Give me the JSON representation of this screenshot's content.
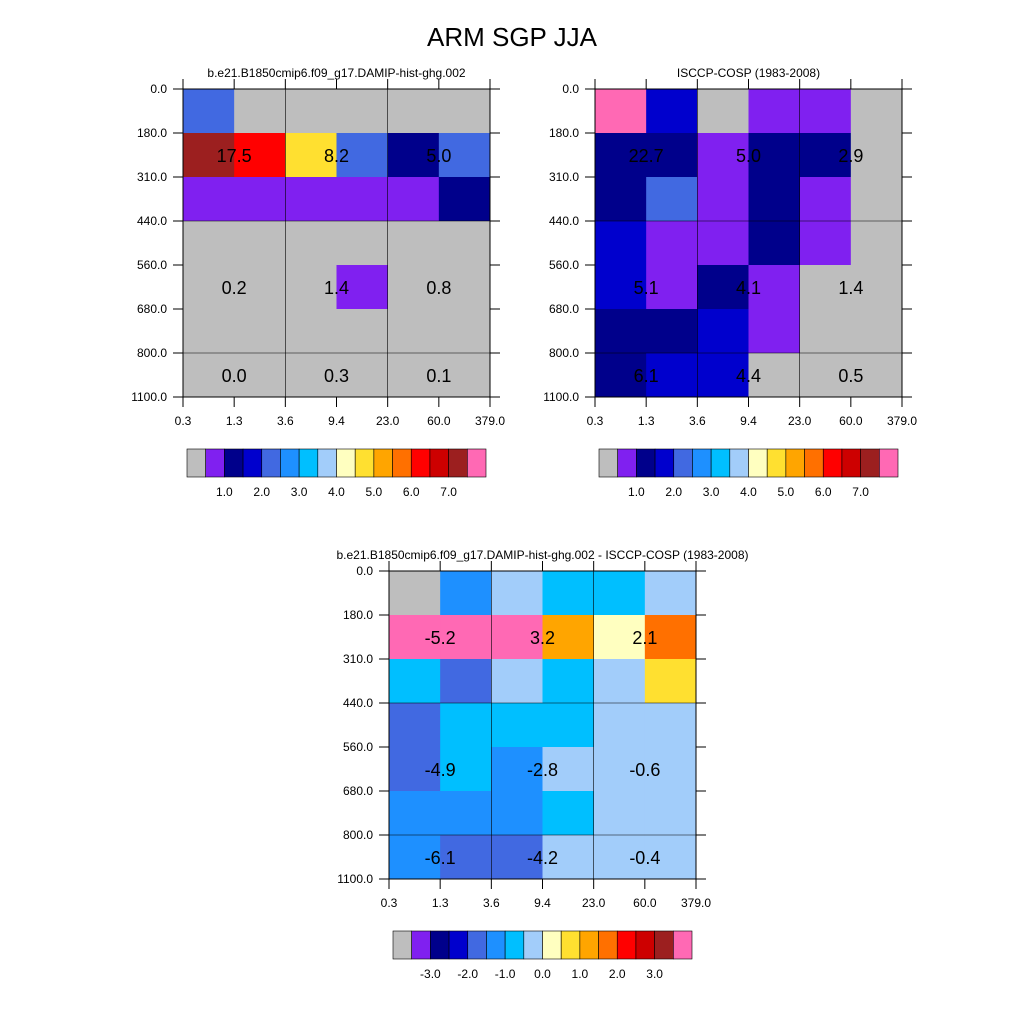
{
  "page_title": "ARM SGP JJA",
  "colors": {
    "cell": {
      "g": "#bebebe",
      "P": "#8020f0",
      "N": "#00008b",
      "B": "#0000cd",
      "R": "#4169e1",
      "D": "#1e90ff",
      "S": "#00bfff",
      "L": "#a2cdfa",
      "Y": "#ffffc0",
      "G": "#ffe030",
      "O": "#ffa500",
      "E": "#ff7000",
      "r": "#ff0000",
      "c": "#cd0000",
      "F": "#9c1f1f",
      "K": "#ff69b4"
    },
    "grid_line": "#000000"
  },
  "chart_data": [
    {
      "type": "heatmap",
      "title": "b.e21.B1850cmip6.f09_g17.DAMIP-hist-ghg.002",
      "x_ticks": [
        "0.3",
        "1.3",
        "3.6",
        "9.4",
        "23.0",
        "60.0",
        "379.0"
      ],
      "y_ticks": [
        "0.0",
        "180.0",
        "310.0",
        "440.0",
        "560.0",
        "680.0",
        "800.0",
        "1100.0"
      ],
      "xlabel": "",
      "ylabel": "",
      "cell_colors": [
        [
          "R",
          "g",
          "g",
          "g",
          "g",
          "g"
        ],
        [
          "F",
          "r",
          "G",
          "R",
          "N",
          "R"
        ],
        [
          "P",
          "P",
          "P",
          "P",
          "P",
          "N"
        ],
        [
          "g",
          "g",
          "g",
          "g",
          "g",
          "g"
        ],
        [
          "g",
          "g",
          "g",
          "P",
          "g",
          "g"
        ],
        [
          "g",
          "g",
          "g",
          "g",
          "g",
          "g"
        ],
        [
          "g",
          "g",
          "g",
          "g",
          "g",
          "g"
        ]
      ],
      "cell_labels": [
        {
          "row": 1,
          "col": 1,
          "text": "17.5"
        },
        {
          "row": 1,
          "col": 3,
          "text": "8.2"
        },
        {
          "row": 1,
          "col": 5,
          "text": "5.0"
        },
        {
          "row": 4,
          "col": 1,
          "text": "0.2"
        },
        {
          "row": 4,
          "col": 3,
          "text": "1.4"
        },
        {
          "row": 4,
          "col": 5,
          "text": "0.8"
        },
        {
          "row": 6,
          "col": 1,
          "text": "0.0"
        },
        {
          "row": 6,
          "col": 3,
          "text": "0.3"
        },
        {
          "row": 6,
          "col": 5,
          "text": "0.1"
        }
      ],
      "colorbar": {
        "colors": [
          "g",
          "P",
          "N",
          "B",
          "R",
          "D",
          "S",
          "L",
          "Y",
          "G",
          "O",
          "E",
          "r",
          "c",
          "F",
          "K"
        ],
        "labels": [
          {
            "after": 1,
            "text": "1.0"
          },
          {
            "after": 3,
            "text": "2.0"
          },
          {
            "after": 5,
            "text": "3.0"
          },
          {
            "after": 7,
            "text": "4.0"
          },
          {
            "after": 9,
            "text": "5.0"
          },
          {
            "after": 11,
            "text": "6.0"
          },
          {
            "after": 13,
            "text": "7.0"
          }
        ]
      }
    },
    {
      "type": "heatmap",
      "title": "ISCCP-COSP (1983-2008)",
      "x_ticks": [
        "0.3",
        "1.3",
        "3.6",
        "9.4",
        "23.0",
        "60.0",
        "379.0"
      ],
      "y_ticks": [
        "0.0",
        "180.0",
        "310.0",
        "440.0",
        "560.0",
        "680.0",
        "800.0",
        "1100.0"
      ],
      "xlabel": "",
      "ylabel": "",
      "cell_colors": [
        [
          "K",
          "B",
          "g",
          "P",
          "P",
          "g"
        ],
        [
          "N",
          "N",
          "P",
          "N",
          "N",
          "g"
        ],
        [
          "N",
          "R",
          "P",
          "N",
          "P",
          "g"
        ],
        [
          "B",
          "P",
          "P",
          "N",
          "P",
          "g"
        ],
        [
          "B",
          "P",
          "N",
          "P",
          "g",
          "g"
        ],
        [
          "N",
          "N",
          "B",
          "P",
          "g",
          "g"
        ],
        [
          "N",
          "B",
          "B",
          "g",
          "g",
          "g"
        ]
      ],
      "cell_labels": [
        {
          "row": 1,
          "col": 1,
          "text": "22.7"
        },
        {
          "row": 1,
          "col": 3,
          "text": "5.0"
        },
        {
          "row": 1,
          "col": 5,
          "text": "2.9"
        },
        {
          "row": 4,
          "col": 1,
          "text": "5.1"
        },
        {
          "row": 4,
          "col": 3,
          "text": "4.1"
        },
        {
          "row": 4,
          "col": 5,
          "text": "1.4"
        },
        {
          "row": 6,
          "col": 1,
          "text": "6.1"
        },
        {
          "row": 6,
          "col": 3,
          "text": "4.4"
        },
        {
          "row": 6,
          "col": 5,
          "text": "0.5"
        }
      ],
      "colorbar": {
        "colors": [
          "g",
          "P",
          "N",
          "B",
          "R",
          "D",
          "S",
          "L",
          "Y",
          "G",
          "O",
          "E",
          "r",
          "c",
          "F",
          "K"
        ],
        "labels": [
          {
            "after": 1,
            "text": "1.0"
          },
          {
            "after": 3,
            "text": "2.0"
          },
          {
            "after": 5,
            "text": "3.0"
          },
          {
            "after": 7,
            "text": "4.0"
          },
          {
            "after": 9,
            "text": "5.0"
          },
          {
            "after": 11,
            "text": "6.0"
          },
          {
            "after": 13,
            "text": "7.0"
          }
        ]
      }
    },
    {
      "type": "heatmap",
      "title": "b.e21.B1850cmip6.f09_g17.DAMIP-hist-ghg.002 - ISCCP-COSP (1983-2008)",
      "x_ticks": [
        "0.3",
        "1.3",
        "3.6",
        "9.4",
        "23.0",
        "60.0",
        "379.0"
      ],
      "y_ticks": [
        "0.0",
        "180.0",
        "310.0",
        "440.0",
        "560.0",
        "680.0",
        "800.0",
        "1100.0"
      ],
      "xlabel": "",
      "ylabel": "",
      "cell_colors": [
        [
          "g",
          "D",
          "L",
          "S",
          "S",
          "L"
        ],
        [
          "K",
          "K",
          "K",
          "O",
          "Y",
          "E"
        ],
        [
          "S",
          "R",
          "L",
          "S",
          "L",
          "G"
        ],
        [
          "R",
          "S",
          "S",
          "S",
          "L",
          "L"
        ],
        [
          "R",
          "S",
          "D",
          "L",
          "L",
          "L"
        ],
        [
          "D",
          "D",
          "D",
          "S",
          "L",
          "L"
        ],
        [
          "D",
          "R",
          "R",
          "L",
          "L",
          "L"
        ]
      ],
      "cell_labels": [
        {
          "row": 1,
          "col": 1,
          "text": "-5.2"
        },
        {
          "row": 1,
          "col": 3,
          "text": "3.2"
        },
        {
          "row": 1,
          "col": 5,
          "text": "2.1"
        },
        {
          "row": 4,
          "col": 1,
          "text": "-4.9"
        },
        {
          "row": 4,
          "col": 3,
          "text": "-2.8"
        },
        {
          "row": 4,
          "col": 5,
          "text": "-0.6"
        },
        {
          "row": 6,
          "col": 1,
          "text": "-6.1"
        },
        {
          "row": 6,
          "col": 3,
          "text": "-4.2"
        },
        {
          "row": 6,
          "col": 5,
          "text": "-0.4"
        }
      ],
      "colorbar": {
        "colors": [
          "g",
          "P",
          "N",
          "B",
          "R",
          "D",
          "S",
          "L",
          "Y",
          "G",
          "O",
          "E",
          "r",
          "c",
          "F",
          "K"
        ],
        "labels": [
          {
            "after": 1,
            "text": "-3.0"
          },
          {
            "after": 3,
            "text": "-2.0"
          },
          {
            "after": 5,
            "text": "-1.0"
          },
          {
            "after": 7,
            "text": "0.0"
          },
          {
            "after": 9,
            "text": "1.0"
          },
          {
            "after": 11,
            "text": "2.0"
          },
          {
            "after": 13,
            "text": "3.0"
          }
        ]
      }
    }
  ]
}
